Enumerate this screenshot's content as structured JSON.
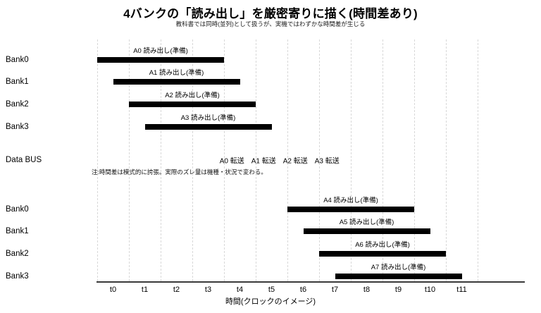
{
  "chart_data": {
    "type": "gantt",
    "title": "4バンクの「読み出し」を厳密寄りに描く(時間差あり)",
    "subtitle": "教科書では同時(並列)として扱うが、実機ではわずかな時間差が生じる",
    "xlabel": "時間(クロックのイメージ)",
    "x_ticks": [
      "t0",
      "t1",
      "t2",
      "t3",
      "t4",
      "t5",
      "t6",
      "t7",
      "t8",
      "t9",
      "t10",
      "t11"
    ],
    "x_gridlines": [
      0,
      1,
      2,
      3,
      4,
      5,
      6,
      7,
      8,
      9,
      10,
      11,
      12
    ],
    "x_unit": "clock slots",
    "grid": "vertical-dashed",
    "legend": "none",
    "rows": [
      {
        "kind": "bar",
        "row_label": "Bank0",
        "bar_label": "A0 読み出し(準備)",
        "start": 0,
        "end": 4
      },
      {
        "kind": "bar",
        "row_label": "Bank1",
        "bar_label": "A1 読み出し(準備)",
        "start": 0.5,
        "end": 4.5
      },
      {
        "kind": "bar",
        "row_label": "Bank2",
        "bar_label": "A2 読み出し(準備)",
        "start": 1,
        "end": 5
      },
      {
        "kind": "bar",
        "row_label": "Bank3",
        "bar_label": "A3 読み出し(準備)",
        "start": 1.5,
        "end": 5.5
      },
      {
        "kind": "bus",
        "row_label": "Data BUS",
        "events": [
          {
            "label": "A0 転送",
            "start": 4,
            "end": 4.5
          },
          {
            "label": "A1 転送",
            "start": 5,
            "end": 5.5
          },
          {
            "label": "A2 転送",
            "start": 6,
            "end": 6.5
          },
          {
            "label": "A3 転送",
            "start": 7,
            "end": 7.5
          }
        ]
      },
      {
        "kind": "note",
        "text": "注:時間差は模式的に誇張。実際のズレ量は機種・状況で変わる。"
      },
      {
        "kind": "bar",
        "row_label": "Bank0",
        "bar_label": "A4 読み出し(準備)",
        "start": 6,
        "end": 10
      },
      {
        "kind": "bar",
        "row_label": "Bank1",
        "bar_label": "A5 読み出し(準備)",
        "start": 6.5,
        "end": 10.5
      },
      {
        "kind": "bar",
        "row_label": "Bank2",
        "bar_label": "A6 読み出し(準備)",
        "start": 7,
        "end": 11
      },
      {
        "kind": "bar",
        "row_label": "Bank3",
        "bar_label": "A7 読み出し(準備)",
        "start": 7.5,
        "end": 11.5
      }
    ],
    "colors": {
      "bar": "#000000",
      "grid": "#d8d8d8",
      "axis": "#3a3a3a",
      "text": "#000000"
    }
  }
}
